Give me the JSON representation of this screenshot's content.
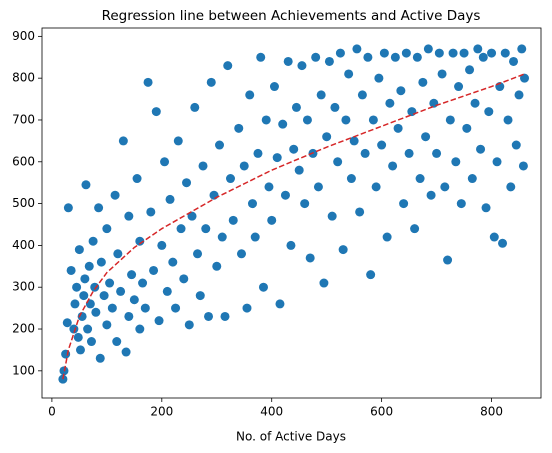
{
  "chart_data": {
    "type": "scatter",
    "title": "Regression line between Achievements and Active Days",
    "xlabel": "No. of Active Days",
    "color": "#1f77b4",
    "x": [
      20,
      22,
      25,
      28,
      30,
      35,
      40,
      42,
      45,
      48,
      50,
      52,
      55,
      58,
      60,
      62,
      65,
      68,
      70,
      72,
      75,
      78,
      80,
      85,
      88,
      90,
      95,
      100,
      100,
      105,
      110,
      115,
      118,
      120,
      125,
      130,
      135,
      140,
      140,
      145,
      150,
      155,
      160,
      160,
      165,
      170,
      175,
      180,
      185,
      190,
      195,
      200,
      205,
      210,
      215,
      220,
      225,
      230,
      235,
      240,
      245,
      250,
      255,
      260,
      265,
      270,
      275,
      280,
      285,
      290,
      295,
      300,
      305,
      310,
      315,
      320,
      325,
      330,
      340,
      345,
      350,
      355,
      360,
      365,
      370,
      375,
      380,
      385,
      390,
      395,
      400,
      405,
      410,
      415,
      420,
      425,
      430,
      435,
      440,
      445,
      450,
      455,
      460,
      465,
      470,
      475,
      480,
      485,
      490,
      495,
      500,
      505,
      510,
      515,
      520,
      525,
      530,
      535,
      540,
      545,
      550,
      555,
      560,
      565,
      570,
      575,
      580,
      585,
      590,
      595,
      600,
      605,
      610,
      615,
      620,
      625,
      630,
      635,
      640,
      645,
      650,
      655,
      660,
      665,
      670,
      675,
      680,
      685,
      690,
      695,
      700,
      705,
      710,
      715,
      720,
      725,
      730,
      735,
      740,
      745,
      750,
      755,
      760,
      765,
      770,
      775,
      780,
      785,
      790,
      795,
      800,
      805,
      810,
      815,
      820,
      825,
      830,
      835,
      840,
      845,
      850,
      855,
      858,
      860
    ],
    "values": [
      80,
      100,
      140,
      215,
      490,
      340,
      200,
      260,
      300,
      180,
      390,
      150,
      230,
      280,
      320,
      545,
      200,
      350,
      260,
      170,
      410,
      300,
      240,
      490,
      130,
      360,
      280,
      210,
      440,
      310,
      250,
      520,
      170,
      380,
      290,
      650,
      145,
      230,
      470,
      330,
      270,
      560,
      200,
      410,
      310,
      250,
      790,
      480,
      340,
      720,
      220,
      400,
      600,
      290,
      510,
      360,
      250,
      650,
      440,
      320,
      550,
      210,
      470,
      730,
      380,
      280,
      590,
      440,
      230,
      790,
      520,
      350,
      640,
      420,
      230,
      830,
      560,
      460,
      680,
      380,
      590,
      250,
      760,
      500,
      420,
      620,
      850,
      300,
      700,
      540,
      460,
      780,
      610,
      260,
      690,
      520,
      840,
      400,
      630,
      730,
      580,
      830,
      500,
      700,
      370,
      620,
      850,
      540,
      760,
      310,
      660,
      840,
      470,
      730,
      600,
      860,
      390,
      700,
      810,
      560,
      650,
      870,
      480,
      760,
      620,
      850,
      330,
      700,
      540,
      800,
      640,
      860,
      420,
      740,
      590,
      850,
      680,
      770,
      500,
      860,
      620,
      720,
      440,
      850,
      560,
      790,
      660,
      870,
      520,
      740,
      620,
      860,
      810,
      540,
      365,
      700,
      860,
      600,
      780,
      500,
      860,
      680,
      820,
      560,
      740,
      870,
      630,
      850,
      490,
      720,
      860,
      420,
      600,
      780,
      405,
      860,
      700,
      540,
      840,
      640,
      760,
      870,
      590,
      800
    ],
    "line": {
      "x": [
        20,
        30,
        50,
        75,
        100,
        150,
        200,
        300,
        400,
        500,
        600,
        700,
        800,
        860
      ],
      "values": [
        80,
        150,
        230,
        290,
        335,
        395,
        440,
        515,
        580,
        635,
        685,
        735,
        780,
        810
      ],
      "color": "#d62728",
      "style": "dashed"
    },
    "xlim": [
      -18,
      890
    ],
    "ylim": [
      35,
      920
    ],
    "xticks": [
      0,
      200,
      400,
      600,
      800
    ],
    "yticks": [
      100,
      200,
      300,
      400,
      500,
      600,
      700,
      800,
      900
    ]
  }
}
